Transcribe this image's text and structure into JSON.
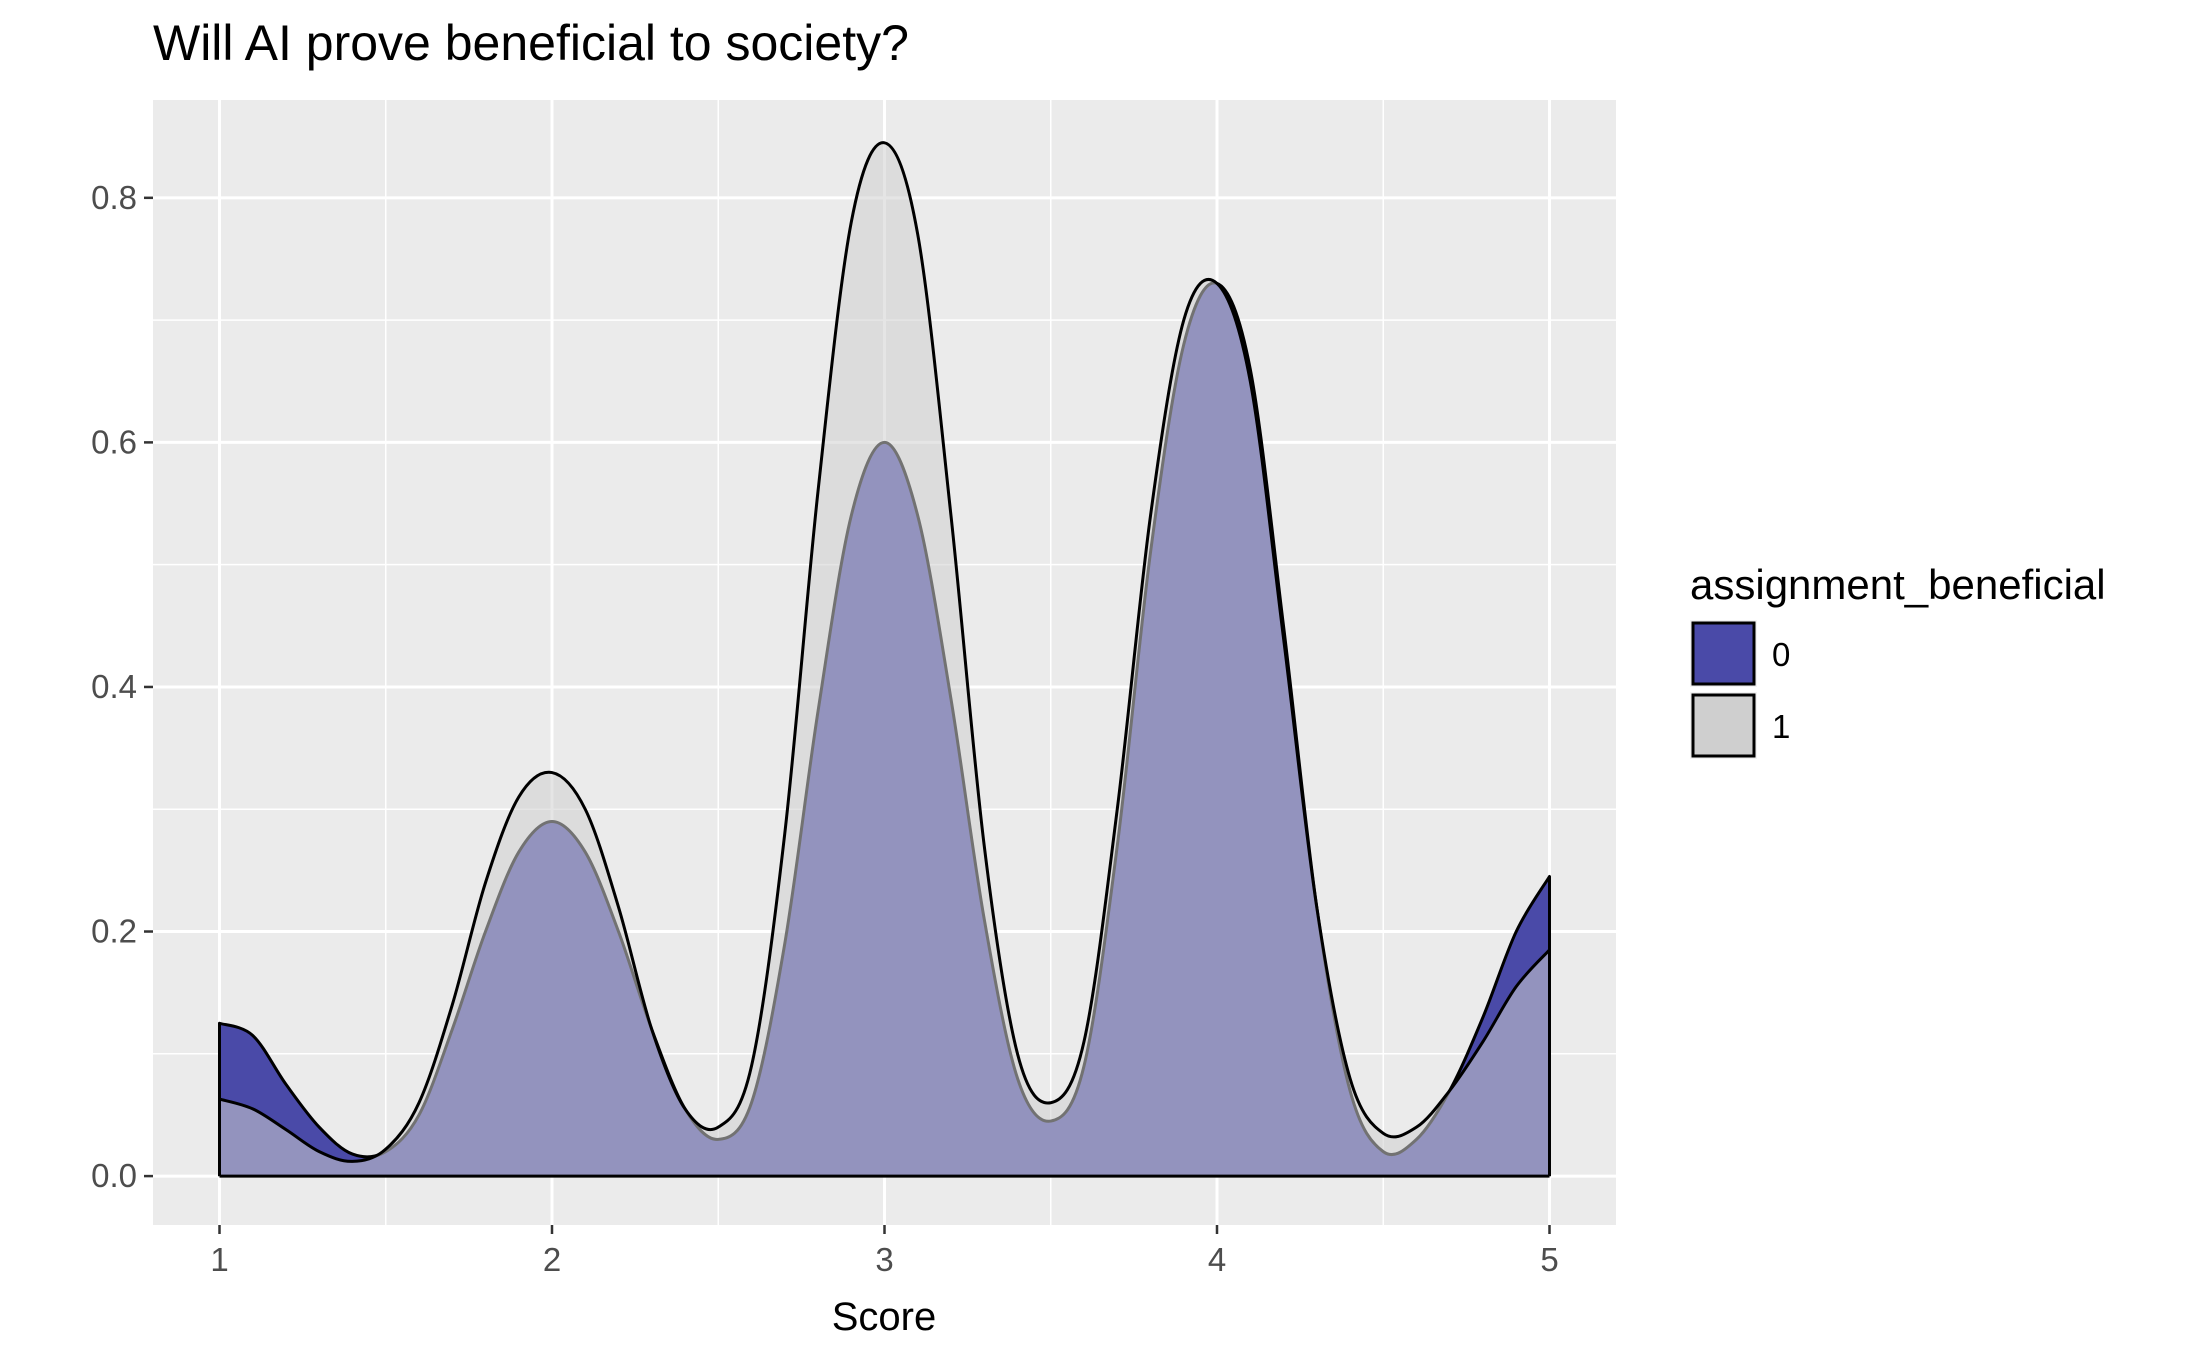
{
  "chart_data": {
    "type": "area",
    "title": "Will AI prove beneficial to society?",
    "xlabel": "Score",
    "ylabel": "",
    "xlim": [
      0.8,
      5.2
    ],
    "ylim": [
      -0.04,
      0.88
    ],
    "x_ticks": [
      1,
      2,
      3,
      4,
      5
    ],
    "x_tick_labels": [
      "1",
      "2",
      "3",
      "4",
      "5"
    ],
    "y_ticks": [
      0.0,
      0.2,
      0.4,
      0.6,
      0.8
    ],
    "y_tick_labels": [
      "0.0",
      "0.2",
      "0.4",
      "0.6",
      "0.8"
    ],
    "grid": true,
    "legend": {
      "title": "assignment_beneficial",
      "position": "right",
      "entries": [
        {
          "label": "0",
          "color": "#4a4aa8"
        },
        {
          "label": "1",
          "color": "#cfcfcf"
        }
      ]
    },
    "colors": {
      "panel_background": "#ebebeb",
      "grid_line": "#ffffff",
      "series_0_fill": "#4a4aa8",
      "series_1_fill": "#cfcfcf",
      "outline": "#000000"
    },
    "series": [
      {
        "name": "0",
        "x": [
          1.0,
          1.1,
          1.2,
          1.3,
          1.4,
          1.5,
          1.6,
          1.7,
          1.8,
          1.9,
          2.0,
          2.1,
          2.2,
          2.3,
          2.4,
          2.5,
          2.6,
          2.7,
          2.8,
          2.9,
          3.0,
          3.1,
          3.2,
          3.3,
          3.4,
          3.5,
          3.6,
          3.7,
          3.8,
          3.9,
          4.0,
          4.1,
          4.2,
          4.3,
          4.4,
          4.5,
          4.6,
          4.7,
          4.8,
          4.9,
          5.0
        ],
        "y": [
          0.125,
          0.115,
          0.075,
          0.04,
          0.018,
          0.02,
          0.05,
          0.12,
          0.2,
          0.265,
          0.29,
          0.265,
          0.2,
          0.12,
          0.055,
          0.03,
          0.06,
          0.19,
          0.38,
          0.54,
          0.6,
          0.54,
          0.39,
          0.21,
          0.08,
          0.045,
          0.09,
          0.27,
          0.51,
          0.68,
          0.73,
          0.66,
          0.45,
          0.22,
          0.07,
          0.02,
          0.03,
          0.07,
          0.13,
          0.2,
          0.245
        ]
      },
      {
        "name": "1",
        "x": [
          1.0,
          1.1,
          1.2,
          1.3,
          1.4,
          1.5,
          1.6,
          1.7,
          1.8,
          1.9,
          2.0,
          2.1,
          2.2,
          2.3,
          2.4,
          2.5,
          2.6,
          2.7,
          2.8,
          2.9,
          3.0,
          3.1,
          3.2,
          3.3,
          3.4,
          3.5,
          3.6,
          3.7,
          3.8,
          3.9,
          4.0,
          4.1,
          4.2,
          4.3,
          4.4,
          4.5,
          4.6,
          4.7,
          4.8,
          4.9,
          5.0
        ],
        "y": [
          0.063,
          0.055,
          0.038,
          0.02,
          0.012,
          0.022,
          0.06,
          0.14,
          0.24,
          0.31,
          0.33,
          0.3,
          0.22,
          0.12,
          0.055,
          0.04,
          0.09,
          0.28,
          0.56,
          0.78,
          0.845,
          0.77,
          0.54,
          0.27,
          0.1,
          0.06,
          0.11,
          0.3,
          0.54,
          0.7,
          0.73,
          0.65,
          0.44,
          0.22,
          0.08,
          0.035,
          0.04,
          0.07,
          0.11,
          0.155,
          0.185
        ]
      }
    ]
  }
}
